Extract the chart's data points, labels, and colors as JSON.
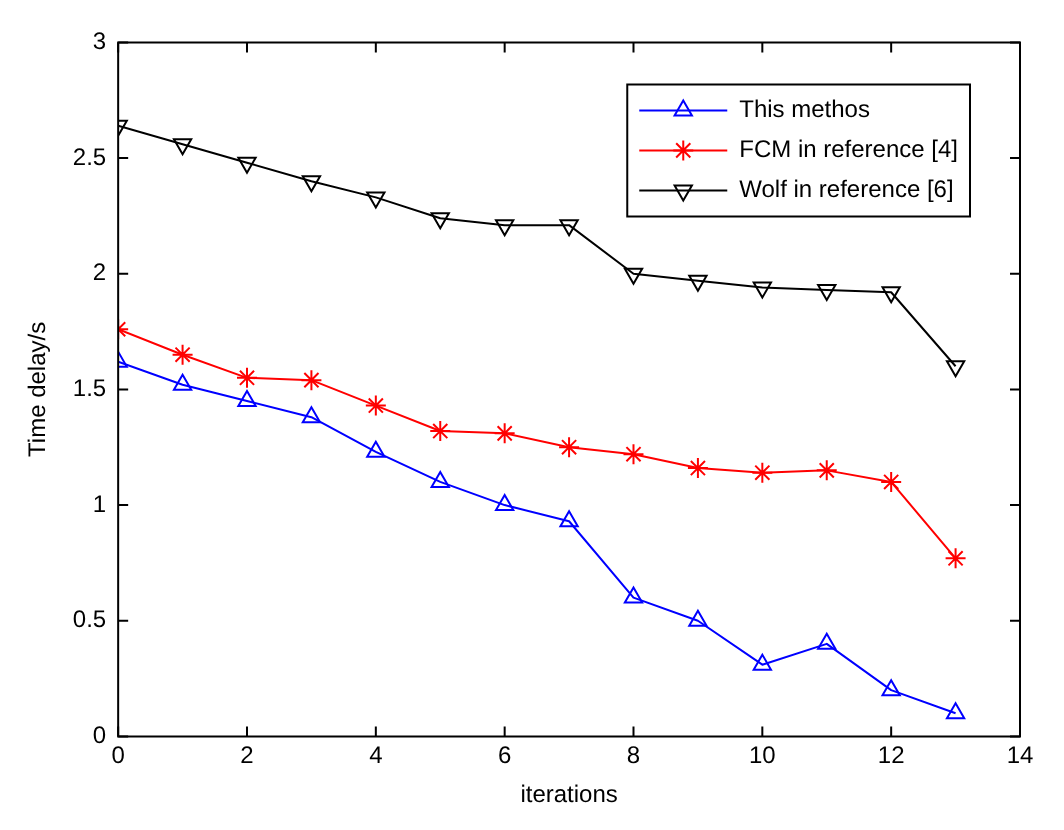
{
  "chart_data": {
    "type": "line",
    "xlabel": "iterations",
    "ylabel": "Time delay/s",
    "x": [
      0,
      1,
      2,
      3,
      4,
      5,
      6,
      7,
      8,
      9,
      10,
      11,
      12,
      13
    ],
    "xlim": [
      0,
      14
    ],
    "xticks": [
      0,
      2,
      4,
      6,
      8,
      10,
      12,
      14
    ],
    "ylim": [
      0,
      3
    ],
    "yticks": [
      0,
      0.5,
      1,
      1.5,
      2,
      2.5,
      3
    ],
    "grid": false,
    "legend": "top right",
    "line_style": "solid",
    "series": [
      {
        "name": "This methos",
        "color": "#0000ff",
        "marker": "triangle",
        "values": [
          1.62,
          1.52,
          1.45,
          1.38,
          1.23,
          1.1,
          1.0,
          0.93,
          0.6,
          0.5,
          0.31,
          0.4,
          0.2,
          0.1
        ]
      },
      {
        "name": "FCM in reference [4]",
        "color": "#ff0000",
        "marker": "cross",
        "values": [
          1.76,
          1.65,
          1.55,
          1.54,
          1.43,
          1.32,
          1.31,
          1.25,
          1.22,
          1.16,
          1.14,
          1.15,
          1.1,
          0.77
        ]
      },
      {
        "name": "Wolf in reference [6]",
        "color": "#000000",
        "marker": "triangle-down",
        "values": [
          2.64,
          2.56,
          2.48,
          2.4,
          2.33,
          2.24,
          2.21,
          2.21,
          2.0,
          1.97,
          1.94,
          1.93,
          1.92,
          1.6
        ]
      }
    ]
  }
}
